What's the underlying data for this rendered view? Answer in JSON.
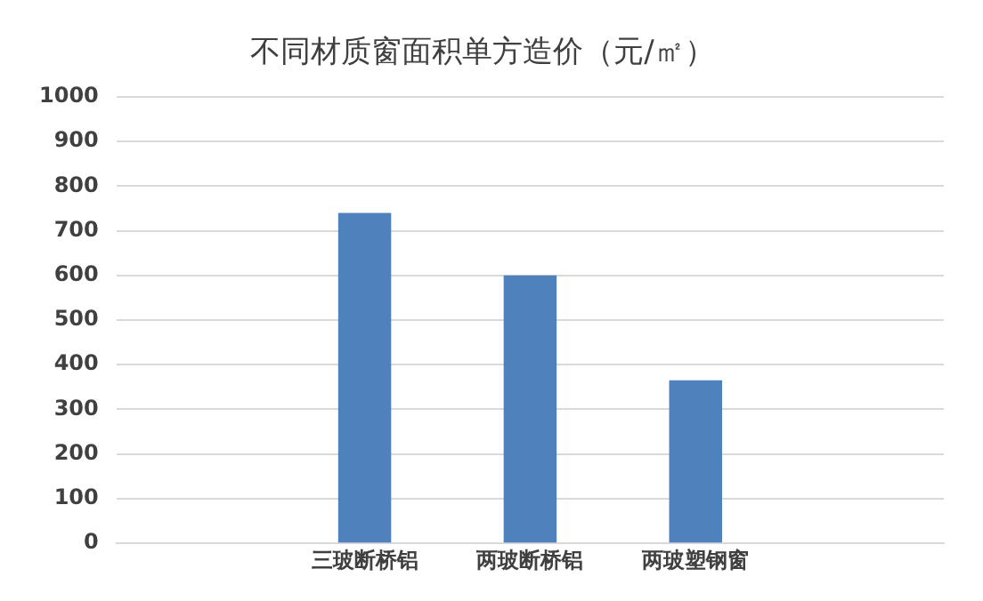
{
  "chart_data": {
    "type": "bar",
    "title": "不同材质窗面积单方造价（元/㎡）",
    "categories": [
      null,
      "三玻断桥铝",
      "两玻断桥铝",
      "两玻塑钢窗",
      null
    ],
    "values": [
      null,
      740,
      600,
      365,
      null
    ],
    "color": "#4f81bd",
    "ylim": [
      0,
      1000
    ],
    "yticks": [
      0,
      100,
      200,
      300,
      400,
      500,
      600,
      700,
      800,
      900,
      1000
    ],
    "grid": "y",
    "legend": false
  }
}
